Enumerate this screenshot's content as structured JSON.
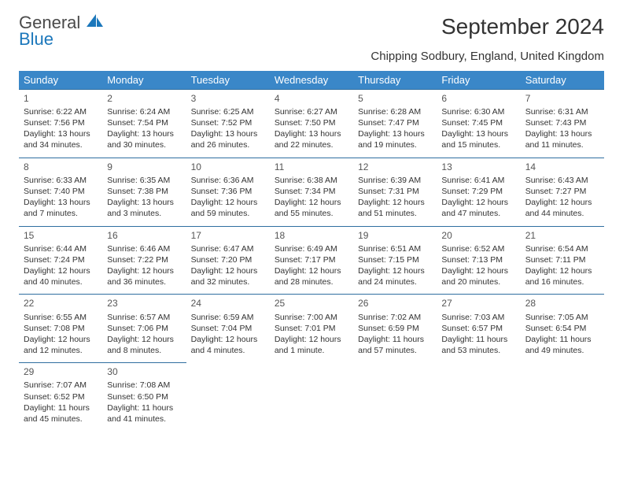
{
  "logo": {
    "line1": "General",
    "line2": "Blue",
    "sail_color": "#1b77bb"
  },
  "title": "September 2024",
  "location": "Chipping Sodbury, England, United Kingdom",
  "header_bg": "#3a87c8",
  "header_fg": "#ffffff",
  "cell_border": "#2f6fa0",
  "weekdays": [
    "Sunday",
    "Monday",
    "Tuesday",
    "Wednesday",
    "Thursday",
    "Friday",
    "Saturday"
  ],
  "days": [
    {
      "n": 1,
      "sr": "6:22 AM",
      "ss": "7:56 PM",
      "dl": "13 hours and 34 minutes."
    },
    {
      "n": 2,
      "sr": "6:24 AM",
      "ss": "7:54 PM",
      "dl": "13 hours and 30 minutes."
    },
    {
      "n": 3,
      "sr": "6:25 AM",
      "ss": "7:52 PM",
      "dl": "13 hours and 26 minutes."
    },
    {
      "n": 4,
      "sr": "6:27 AM",
      "ss": "7:50 PM",
      "dl": "13 hours and 22 minutes."
    },
    {
      "n": 5,
      "sr": "6:28 AM",
      "ss": "7:47 PM",
      "dl": "13 hours and 19 minutes."
    },
    {
      "n": 6,
      "sr": "6:30 AM",
      "ss": "7:45 PM",
      "dl": "13 hours and 15 minutes."
    },
    {
      "n": 7,
      "sr": "6:31 AM",
      "ss": "7:43 PM",
      "dl": "13 hours and 11 minutes."
    },
    {
      "n": 8,
      "sr": "6:33 AM",
      "ss": "7:40 PM",
      "dl": "13 hours and 7 minutes."
    },
    {
      "n": 9,
      "sr": "6:35 AM",
      "ss": "7:38 PM",
      "dl": "13 hours and 3 minutes."
    },
    {
      "n": 10,
      "sr": "6:36 AM",
      "ss": "7:36 PM",
      "dl": "12 hours and 59 minutes."
    },
    {
      "n": 11,
      "sr": "6:38 AM",
      "ss": "7:34 PM",
      "dl": "12 hours and 55 minutes."
    },
    {
      "n": 12,
      "sr": "6:39 AM",
      "ss": "7:31 PM",
      "dl": "12 hours and 51 minutes."
    },
    {
      "n": 13,
      "sr": "6:41 AM",
      "ss": "7:29 PM",
      "dl": "12 hours and 47 minutes."
    },
    {
      "n": 14,
      "sr": "6:43 AM",
      "ss": "7:27 PM",
      "dl": "12 hours and 44 minutes."
    },
    {
      "n": 15,
      "sr": "6:44 AM",
      "ss": "7:24 PM",
      "dl": "12 hours and 40 minutes."
    },
    {
      "n": 16,
      "sr": "6:46 AM",
      "ss": "7:22 PM",
      "dl": "12 hours and 36 minutes."
    },
    {
      "n": 17,
      "sr": "6:47 AM",
      "ss": "7:20 PM",
      "dl": "12 hours and 32 minutes."
    },
    {
      "n": 18,
      "sr": "6:49 AM",
      "ss": "7:17 PM",
      "dl": "12 hours and 28 minutes."
    },
    {
      "n": 19,
      "sr": "6:51 AM",
      "ss": "7:15 PM",
      "dl": "12 hours and 24 minutes."
    },
    {
      "n": 20,
      "sr": "6:52 AM",
      "ss": "7:13 PM",
      "dl": "12 hours and 20 minutes."
    },
    {
      "n": 21,
      "sr": "6:54 AM",
      "ss": "7:11 PM",
      "dl": "12 hours and 16 minutes."
    },
    {
      "n": 22,
      "sr": "6:55 AM",
      "ss": "7:08 PM",
      "dl": "12 hours and 12 minutes."
    },
    {
      "n": 23,
      "sr": "6:57 AM",
      "ss": "7:06 PM",
      "dl": "12 hours and 8 minutes."
    },
    {
      "n": 24,
      "sr": "6:59 AM",
      "ss": "7:04 PM",
      "dl": "12 hours and 4 minutes."
    },
    {
      "n": 25,
      "sr": "7:00 AM",
      "ss": "7:01 PM",
      "dl": "12 hours and 1 minute."
    },
    {
      "n": 26,
      "sr": "7:02 AM",
      "ss": "6:59 PM",
      "dl": "11 hours and 57 minutes."
    },
    {
      "n": 27,
      "sr": "7:03 AM",
      "ss": "6:57 PM",
      "dl": "11 hours and 53 minutes."
    },
    {
      "n": 28,
      "sr": "7:05 AM",
      "ss": "6:54 PM",
      "dl": "11 hours and 49 minutes."
    },
    {
      "n": 29,
      "sr": "7:07 AM",
      "ss": "6:52 PM",
      "dl": "11 hours and 45 minutes."
    },
    {
      "n": 30,
      "sr": "7:08 AM",
      "ss": "6:50 PM",
      "dl": "11 hours and 41 minutes."
    }
  ],
  "labels": {
    "sunrise": "Sunrise:",
    "sunset": "Sunset:",
    "daylight": "Daylight:"
  },
  "first_weekday_index": 0,
  "total_cells": 35
}
